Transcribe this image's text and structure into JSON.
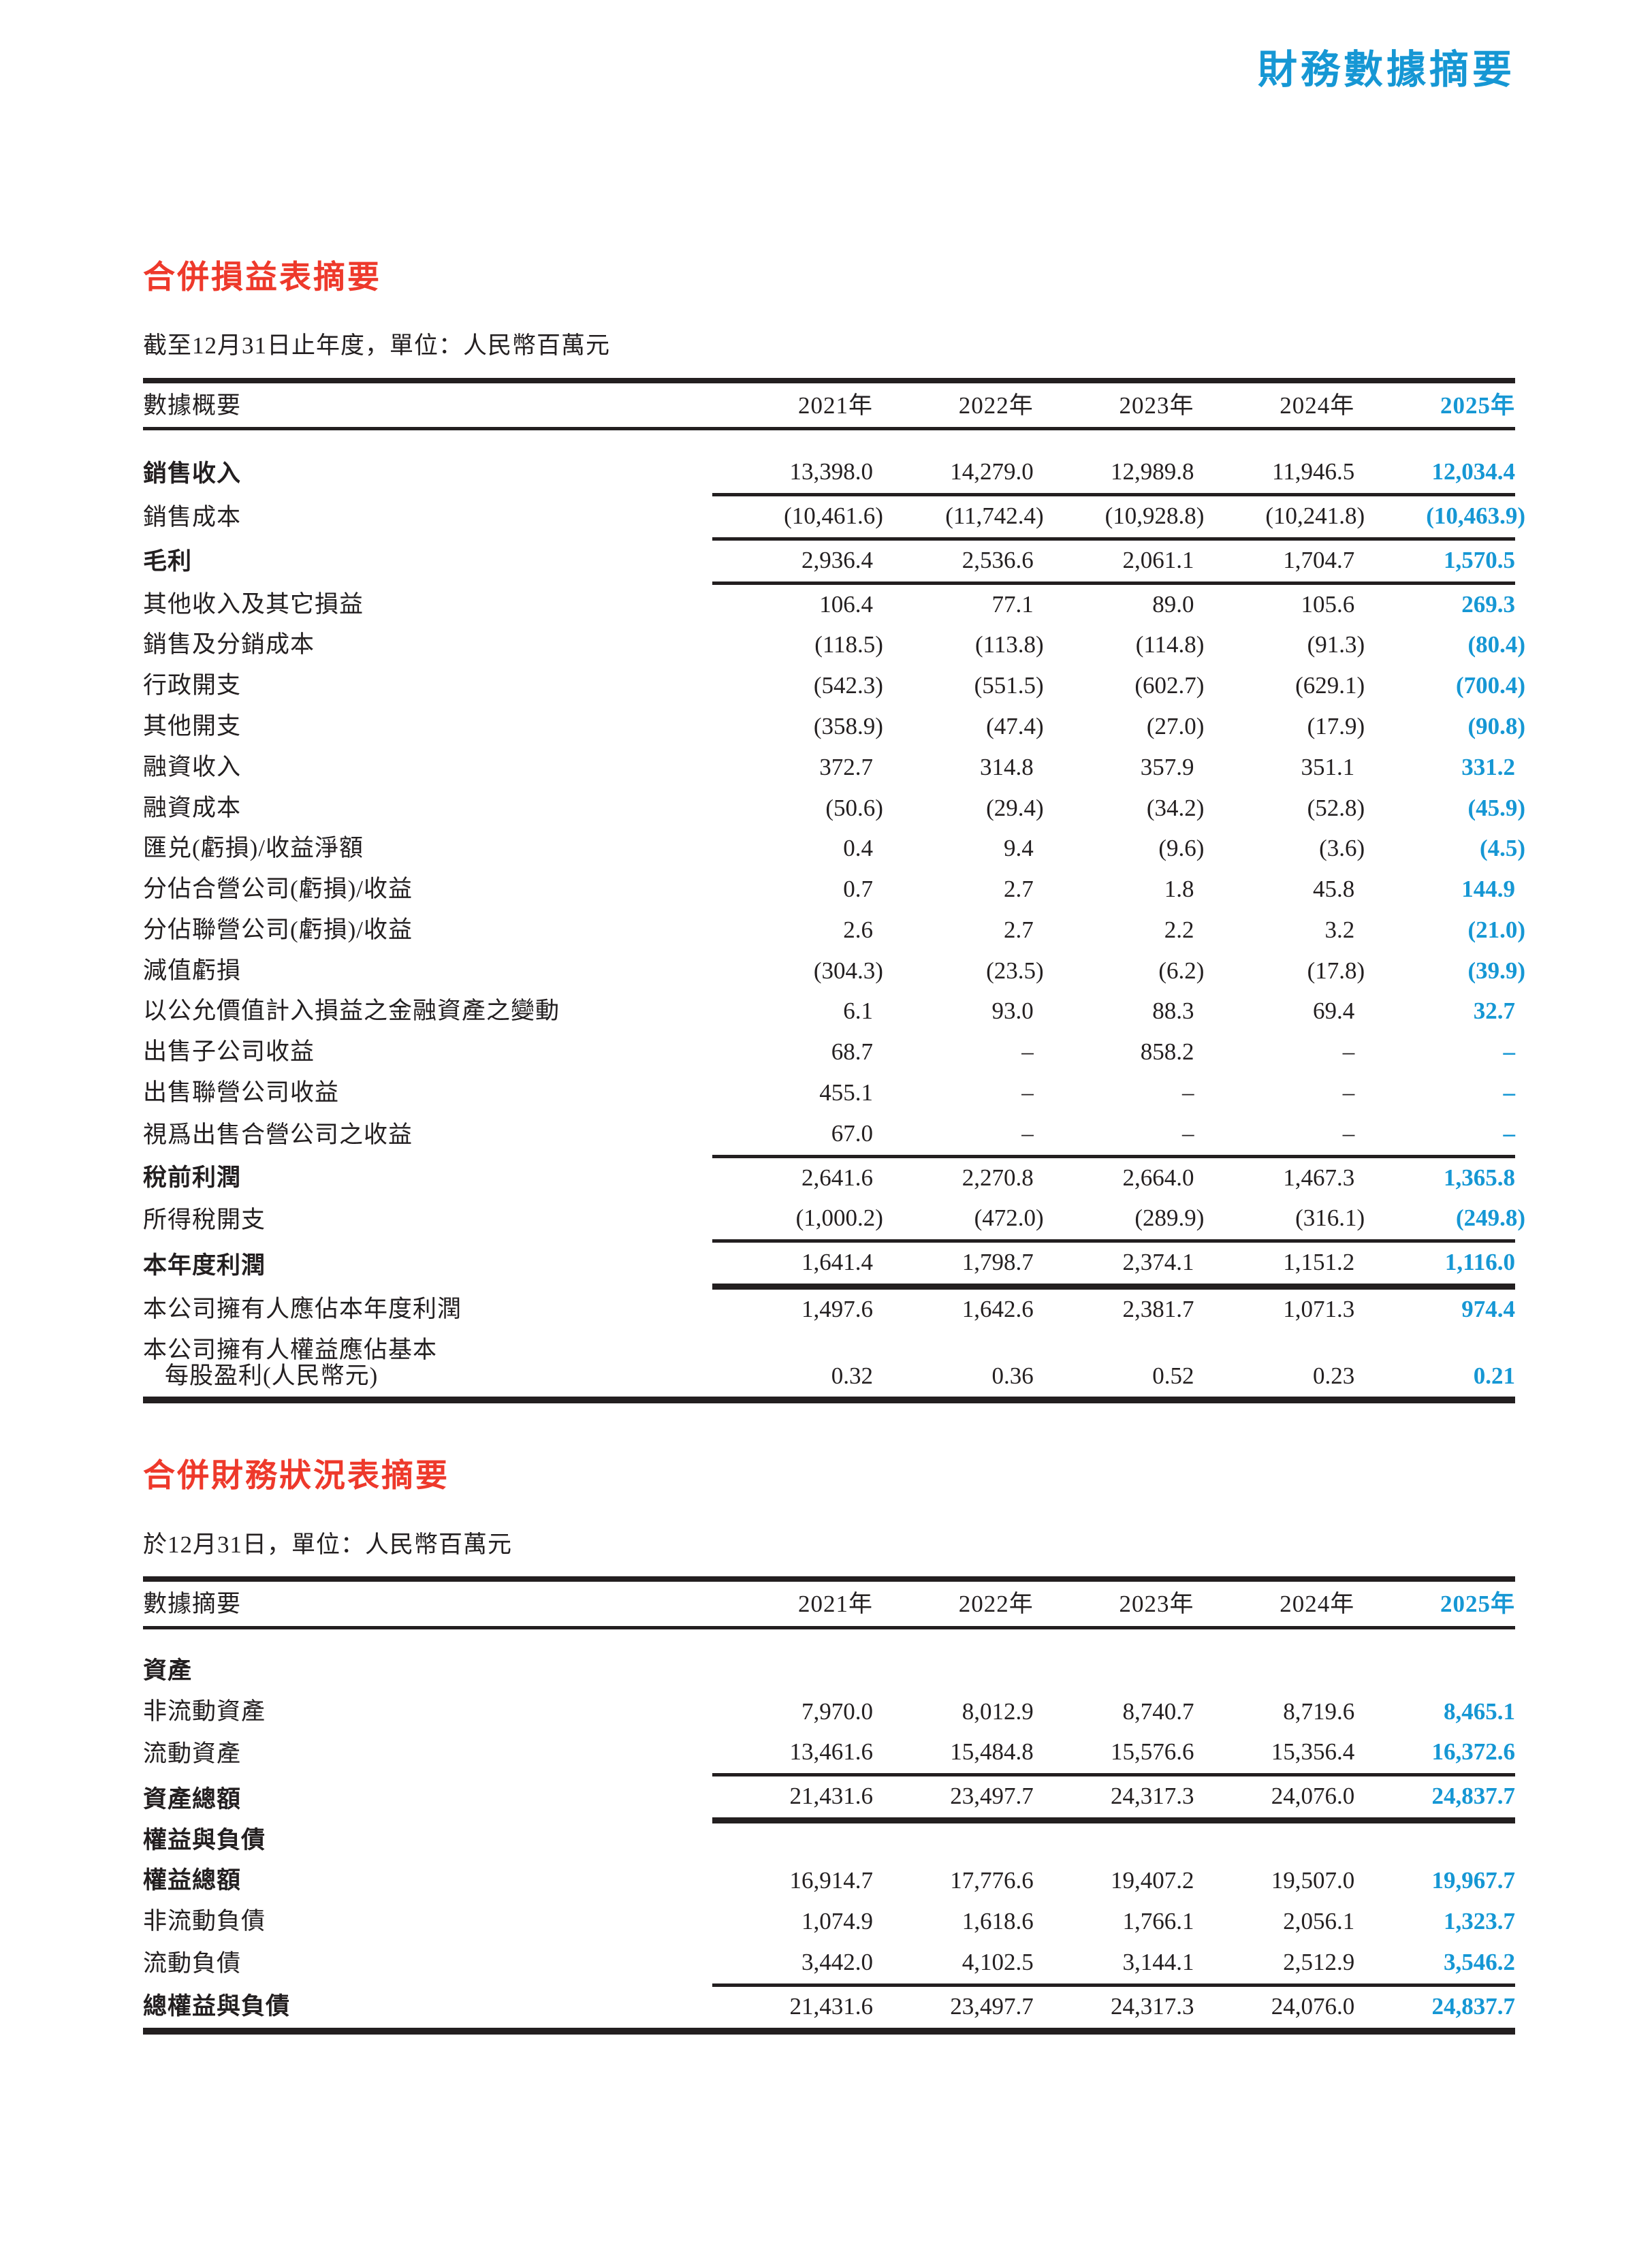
{
  "page": {
    "title": "財務數據摘要",
    "accent_blue": "#1697d4",
    "accent_red": "#ee392b",
    "text_color": "#231f20"
  },
  "income_statement": {
    "heading": "合併損益表摘要",
    "subtitle": "截至12月31日止年度，單位：人民幣百萬元",
    "first_col_header": "數據概要",
    "year_headers": [
      "2021年",
      "2022年",
      "2023年",
      "2024年",
      "2025年"
    ],
    "rows": [
      {
        "label": "銷售收入",
        "bold": true,
        "rule": "thin",
        "values": [
          "13,398.0",
          "14,279.0",
          "12,989.8",
          "11,946.5",
          "12,034.4"
        ]
      },
      {
        "label": "銷售成本",
        "bold": false,
        "rule": "thin",
        "values": [
          "(10,461.6)",
          "(11,742.4)",
          "(10,928.8)",
          "(10,241.8)",
          "(10,463.9)"
        ]
      },
      {
        "label": "毛利",
        "bold": true,
        "rule": "thin",
        "values": [
          "2,936.4",
          "2,536.6",
          "2,061.1",
          "1,704.7",
          "1,570.5"
        ]
      },
      {
        "label": "其他收入及其它損益",
        "bold": false,
        "rule": "",
        "values": [
          "106.4",
          "77.1",
          "89.0",
          "105.6",
          "269.3"
        ]
      },
      {
        "label": "銷售及分銷成本",
        "bold": false,
        "rule": "",
        "values": [
          "(118.5)",
          "(113.8)",
          "(114.8)",
          "(91.3)",
          "(80.4)"
        ]
      },
      {
        "label": "行政開支",
        "bold": false,
        "rule": "",
        "values": [
          "(542.3)",
          "(551.5)",
          "(602.7)",
          "(629.1)",
          "(700.4)"
        ]
      },
      {
        "label": "其他開支",
        "bold": false,
        "rule": "",
        "values": [
          "(358.9)",
          "(47.4)",
          "(27.0)",
          "(17.9)",
          "(90.8)"
        ]
      },
      {
        "label": "融資收入",
        "bold": false,
        "rule": "",
        "values": [
          "372.7",
          "314.8",
          "357.9",
          "351.1",
          "331.2"
        ]
      },
      {
        "label": "融資成本",
        "bold": false,
        "rule": "",
        "values": [
          "(50.6)",
          "(29.4)",
          "(34.2)",
          "(52.8)",
          "(45.9)"
        ]
      },
      {
        "label": "匯兑(虧損)/收益淨額",
        "bold": false,
        "rule": "",
        "values": [
          "0.4",
          "9.4",
          "(9.6)",
          "(3.6)",
          "(4.5)"
        ]
      },
      {
        "label": "分佔合營公司(虧損)/收益",
        "bold": false,
        "rule": "",
        "values": [
          "0.7",
          "2.7",
          "1.8",
          "45.8",
          "144.9"
        ]
      },
      {
        "label": "分佔聯營公司(虧損)/收益",
        "bold": false,
        "rule": "",
        "values": [
          "2.6",
          "2.7",
          "2.2",
          "3.2",
          "(21.0)"
        ]
      },
      {
        "label": "減值虧損",
        "bold": false,
        "rule": "",
        "values": [
          "(304.3)",
          "(23.5)",
          "(6.2)",
          "(17.8)",
          "(39.9)"
        ]
      },
      {
        "label": "以公允價值計入損益之金融資產之變動",
        "bold": false,
        "rule": "",
        "values": [
          "6.1",
          "93.0",
          "88.3",
          "69.4",
          "32.7"
        ]
      },
      {
        "label": "出售子公司收益",
        "bold": false,
        "rule": "",
        "values": [
          "68.7",
          "–",
          "858.2",
          "–",
          "–"
        ]
      },
      {
        "label": "出售聯營公司收益",
        "bold": false,
        "rule": "",
        "values": [
          "455.1",
          "–",
          "–",
          "–",
          "–"
        ]
      },
      {
        "label": "視爲出售合營公司之收益",
        "bold": false,
        "rule": "thin",
        "values": [
          "67.0",
          "–",
          "–",
          "–",
          "–"
        ]
      },
      {
        "label": "稅前利潤",
        "bold": true,
        "rule": "",
        "values": [
          "2,641.6",
          "2,270.8",
          "2,664.0",
          "1,467.3",
          "1,365.8"
        ]
      },
      {
        "label": "所得稅開支",
        "bold": false,
        "rule": "thin",
        "values": [
          "(1,000.2)",
          "(472.0)",
          "(289.9)",
          "(316.1)",
          "(249.8)"
        ]
      },
      {
        "label": "本年度利潤",
        "bold": true,
        "rule": "thick",
        "values": [
          "1,641.4",
          "1,798.7",
          "2,374.1",
          "1,151.2",
          "1,116.0"
        ]
      },
      {
        "label": "本公司擁有人應佔本年度利潤",
        "bold": false,
        "rule": "",
        "values": [
          "1,497.6",
          "1,642.6",
          "2,381.7",
          "1,071.3",
          "974.4"
        ]
      },
      {
        "label": "本公司擁有人權益應佔基本",
        "label2": "每股盈利(人民幣元)",
        "bold": false,
        "rule": "",
        "values": [
          "0.32",
          "0.36",
          "0.52",
          "0.23",
          "0.21"
        ]
      }
    ]
  },
  "balance_sheet": {
    "heading": "合併財務狀況表摘要",
    "subtitle": "於12月31日，單位：人民幣百萬元",
    "first_col_header": "數據摘要",
    "year_headers": [
      "2021年",
      "2022年",
      "2023年",
      "2024年",
      "2025年"
    ],
    "rows": [
      {
        "label": "資產",
        "bold": true,
        "rule": "",
        "values": [
          "",
          "",
          "",
          "",
          ""
        ]
      },
      {
        "label": "非流動資產",
        "bold": false,
        "rule": "",
        "values": [
          "7,970.0",
          "8,012.9",
          "8,740.7",
          "8,719.6",
          "8,465.1"
        ]
      },
      {
        "label": "流動資產",
        "bold": false,
        "rule": "thin",
        "values": [
          "13,461.6",
          "15,484.8",
          "15,576.6",
          "15,356.4",
          "16,372.6"
        ]
      },
      {
        "label": "資產總額",
        "bold": true,
        "rule": "thick",
        "values": [
          "21,431.6",
          "23,497.7",
          "24,317.3",
          "24,076.0",
          "24,837.7"
        ]
      },
      {
        "label": "權益與負債",
        "bold": true,
        "rule": "",
        "values": [
          "",
          "",
          "",
          "",
          ""
        ]
      },
      {
        "label": "權益總額",
        "bold": true,
        "rule": "",
        "values": [
          "16,914.7",
          "17,776.6",
          "19,407.2",
          "19,507.0",
          "19,967.7"
        ]
      },
      {
        "label": "非流動負債",
        "bold": false,
        "rule": "",
        "values": [
          "1,074.9",
          "1,618.6",
          "1,766.1",
          "2,056.1",
          "1,323.7"
        ]
      },
      {
        "label": "流動負債",
        "bold": false,
        "rule": "thin",
        "values": [
          "3,442.0",
          "4,102.5",
          "3,144.1",
          "2,512.9",
          "3,546.2"
        ]
      },
      {
        "label": "總權益與負債",
        "bold": true,
        "rule": "",
        "values": [
          "21,431.6",
          "23,497.7",
          "24,317.3",
          "24,076.0",
          "24,837.7"
        ]
      }
    ]
  }
}
